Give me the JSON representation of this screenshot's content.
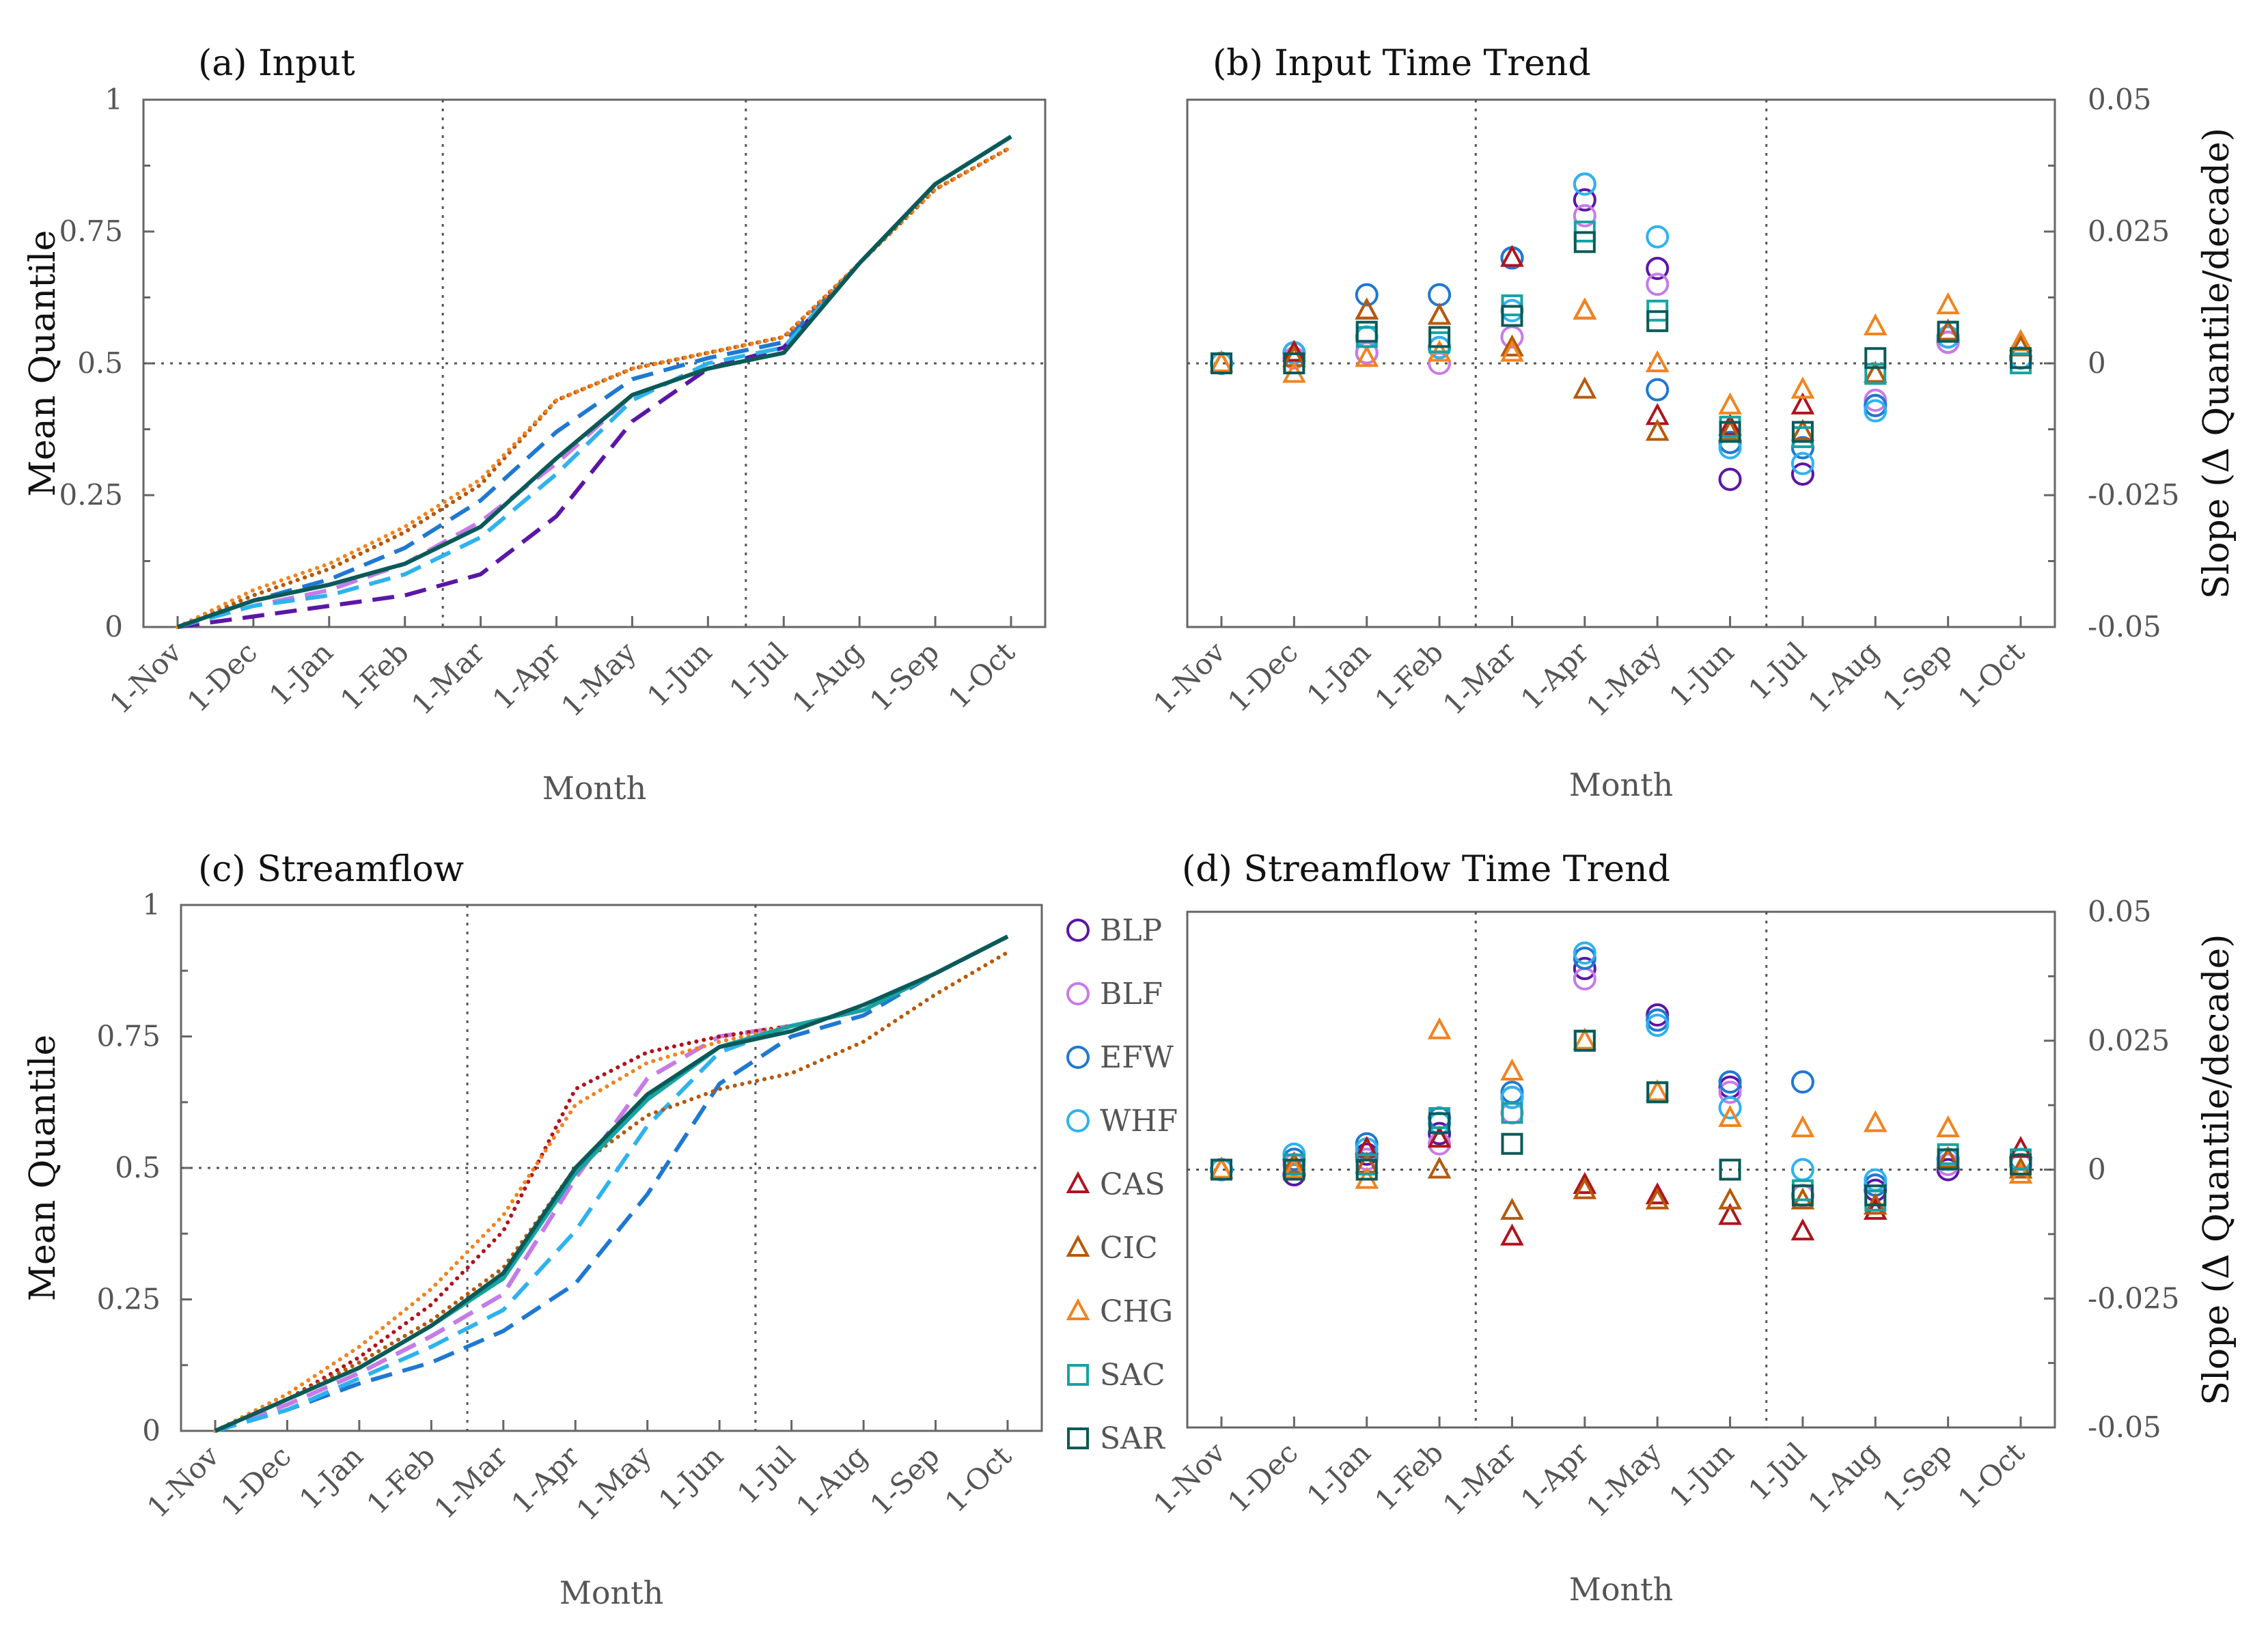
{
  "colors": {
    "BLP": "#5b16a6",
    "BLF": "#c77be8",
    "EFW": "#1f78d1",
    "WHF": "#2fb2ee",
    "CAS": "#b0131d",
    "CIC": "#b6590b",
    "CHG": "#f2831f",
    "SAC": "#17a3a3",
    "SAR": "#0b5a57"
  },
  "legend": {
    "entries": [
      {
        "key": "BLP",
        "label": "BLP",
        "marker": "circle-icon"
      },
      {
        "key": "BLF",
        "label": "BLF",
        "marker": "circle-icon"
      },
      {
        "key": "EFW",
        "label": "EFW",
        "marker": "circle-icon"
      },
      {
        "key": "WHF",
        "label": "WHF",
        "marker": "circle-icon"
      },
      {
        "key": "CAS",
        "label": "CAS",
        "marker": "triangle-icon"
      },
      {
        "key": "CIC",
        "label": "CIC",
        "marker": "triangle-icon"
      },
      {
        "key": "CHG",
        "label": "CHG",
        "marker": "triangle-icon"
      },
      {
        "key": "SAC",
        "label": "SAC",
        "marker": "square-icon"
      },
      {
        "key": "SAR",
        "label": "SAR",
        "marker": "square-icon"
      }
    ]
  },
  "chart_data": [
    {
      "id": "a",
      "type": "line",
      "title": "(a) Input",
      "xlabel": "Month",
      "ylabel": "Mean Quantile",
      "categories": [
        "1-Nov",
        "1-Dec",
        "1-Jan",
        "1-Feb",
        "1-Mar",
        "1-Apr",
        "1-May",
        "1-Jun",
        "1-Jul",
        "1-Aug",
        "1-Sep",
        "1-Oct"
      ],
      "yticks": [
        "0",
        "0.25",
        "0.5",
        "0.75",
        "1"
      ],
      "ylim": [
        0,
        1
      ],
      "reference_lines": {
        "x_after_index": [
          3.5,
          7.5
        ],
        "y": 0.5
      },
      "series": [
        {
          "name": "BLP",
          "style": "dash",
          "values": [
            0.0,
            0.02,
            0.04,
            0.06,
            0.1,
            0.21,
            0.39,
            0.49,
            0.53,
            0.69,
            0.84,
            0.93
          ]
        },
        {
          "name": "BLF",
          "style": "dash",
          "values": [
            0.0,
            0.04,
            0.07,
            0.12,
            0.2,
            0.31,
            0.44,
            0.49,
            0.52,
            0.69,
            0.84,
            0.93
          ]
        },
        {
          "name": "EFW",
          "style": "dash",
          "values": [
            0.0,
            0.05,
            0.09,
            0.15,
            0.24,
            0.37,
            0.47,
            0.51,
            0.54,
            0.69,
            0.84,
            0.93
          ]
        },
        {
          "name": "WHF",
          "style": "dash",
          "values": [
            0.0,
            0.04,
            0.06,
            0.1,
            0.17,
            0.29,
            0.43,
            0.5,
            0.53,
            0.69,
            0.84,
            0.93
          ]
        },
        {
          "name": "CAS",
          "style": "dot",
          "values": [
            0.0,
            0.06,
            0.11,
            0.18,
            0.27,
            0.43,
            0.49,
            0.52,
            0.55,
            0.69,
            0.83,
            0.91
          ]
        },
        {
          "name": "CIC",
          "style": "dot",
          "values": [
            0.0,
            0.06,
            0.11,
            0.18,
            0.27,
            0.43,
            0.49,
            0.52,
            0.55,
            0.69,
            0.83,
            0.91
          ]
        },
        {
          "name": "CHG",
          "style": "dot",
          "values": [
            0.0,
            0.07,
            0.12,
            0.19,
            0.28,
            0.43,
            0.49,
            0.52,
            0.55,
            0.69,
            0.83,
            0.91
          ]
        },
        {
          "name": "SAC",
          "style": "solid",
          "values": [
            0.0,
            0.05,
            0.08,
            0.12,
            0.19,
            0.32,
            0.44,
            0.49,
            0.52,
            0.69,
            0.84,
            0.93
          ]
        },
        {
          "name": "SAR",
          "style": "solid",
          "values": [
            0.0,
            0.05,
            0.08,
            0.12,
            0.19,
            0.32,
            0.44,
            0.49,
            0.52,
            0.69,
            0.84,
            0.93
          ]
        }
      ]
    },
    {
      "id": "b",
      "type": "scatter",
      "title": "(b) Input Time Trend",
      "xlabel": "Month",
      "ylabel": "Slope (Δ Quantile/decade)",
      "y_axis_side": "right",
      "categories": [
        "1-Nov",
        "1-Dec",
        "1-Jan",
        "1-Feb",
        "1-Mar",
        "1-Apr",
        "1-May",
        "1-Jun",
        "1-Jul",
        "1-Aug",
        "1-Sep",
        "1-Oct"
      ],
      "yticks": [
        "-0.05",
        "-0.025",
        "0",
        "0.025",
        "0.05"
      ],
      "ylim": [
        -0.05,
        0.05
      ],
      "reference_lines": {
        "x_after_index": [
          3.5,
          7.5
        ],
        "y": 0
      },
      "series": [
        {
          "name": "BLP",
          "marker": "circle",
          "values": [
            0.0,
            0.002,
            0.002,
            0.003,
            0.02,
            0.031,
            0.018,
            -0.022,
            -0.021,
            -0.008,
            0.004,
            0.001
          ]
        },
        {
          "name": "BLF",
          "marker": "circle",
          "values": [
            0.0,
            0.001,
            0.002,
            0.0,
            0.005,
            0.028,
            0.015,
            -0.015,
            -0.016,
            -0.007,
            0.004,
            0.001
          ]
        },
        {
          "name": "EFW",
          "marker": "circle",
          "values": [
            0.0,
            0.002,
            0.013,
            0.013,
            0.02,
            0.034,
            -0.005,
            -0.015,
            -0.016,
            -0.008,
            0.005,
            0.001
          ]
        },
        {
          "name": "WHF",
          "marker": "circle",
          "values": [
            0.0,
            0.002,
            0.005,
            0.003,
            0.01,
            0.034,
            0.024,
            -0.016,
            -0.019,
            -0.009,
            0.005,
            0.001
          ]
        },
        {
          "name": "CAS",
          "marker": "triangle",
          "values": [
            0.0,
            0.002,
            0.01,
            0.009,
            0.02,
            0.01,
            -0.01,
            -0.012,
            -0.008,
            -0.002,
            0.006,
            0.004
          ]
        },
        {
          "name": "CIC",
          "marker": "triangle",
          "values": [
            0.0,
            0.001,
            0.01,
            0.009,
            0.003,
            -0.005,
            -0.013,
            -0.013,
            -0.013,
            -0.002,
            0.006,
            0.003
          ]
        },
        {
          "name": "CHG",
          "marker": "triangle",
          "values": [
            0.0,
            -0.002,
            0.001,
            0.002,
            0.002,
            0.01,
            0.0,
            -0.008,
            -0.005,
            0.007,
            0.011,
            0.004
          ]
        },
        {
          "name": "SAC",
          "marker": "square",
          "values": [
            0.0,
            0.0,
            0.005,
            0.004,
            0.011,
            0.025,
            0.01,
            -0.012,
            -0.014,
            -0.002,
            0.006,
            0.0
          ]
        },
        {
          "name": "SAR",
          "marker": "square",
          "values": [
            0.0,
            0.0,
            0.006,
            0.005,
            0.009,
            0.023,
            0.008,
            -0.013,
            -0.013,
            0.001,
            0.006,
            0.001
          ]
        }
      ]
    },
    {
      "id": "c",
      "type": "line",
      "title": "(c) Streamflow",
      "xlabel": "Month",
      "ylabel": "Mean Quantile",
      "categories": [
        "1-Nov",
        "1-Dec",
        "1-Jan",
        "1-Feb",
        "1-Mar",
        "1-Apr",
        "1-May",
        "1-Jun",
        "1-Jul",
        "1-Aug",
        "1-Sep",
        "1-Oct"
      ],
      "yticks": [
        "0",
        "0.25",
        "0.5",
        "0.75",
        "1"
      ],
      "ylim": [
        0,
        1
      ],
      "reference_lines": {
        "x_after_index": [
          3.5,
          7.5
        ],
        "y": 0.5
      },
      "series": [
        {
          "name": "BLP",
          "style": "dash",
          "values": [
            0.0,
            0.05,
            0.11,
            0.18,
            0.26,
            0.48,
            0.67,
            0.75,
            0.77,
            0.8,
            0.87,
            0.94
          ]
        },
        {
          "name": "BLF",
          "style": "dash",
          "values": [
            0.0,
            0.05,
            0.11,
            0.18,
            0.26,
            0.48,
            0.67,
            0.75,
            0.77,
            0.8,
            0.87,
            0.94
          ]
        },
        {
          "name": "EFW",
          "style": "dash",
          "values": [
            0.0,
            0.04,
            0.09,
            0.13,
            0.19,
            0.28,
            0.45,
            0.66,
            0.75,
            0.79,
            0.87,
            0.94
          ]
        },
        {
          "name": "WHF",
          "style": "dash",
          "values": [
            0.0,
            0.04,
            0.1,
            0.16,
            0.23,
            0.38,
            0.58,
            0.72,
            0.77,
            0.8,
            0.87,
            0.94
          ]
        },
        {
          "name": "CAS",
          "style": "dot",
          "values": [
            0.0,
            0.06,
            0.14,
            0.24,
            0.38,
            0.65,
            0.72,
            0.75,
            0.77,
            0.8,
            0.87,
            0.94
          ]
        },
        {
          "name": "CIC",
          "style": "dot",
          "values": [
            0.0,
            0.06,
            0.13,
            0.21,
            0.31,
            0.5,
            0.6,
            0.65,
            0.68,
            0.74,
            0.83,
            0.91
          ]
        },
        {
          "name": "CHG",
          "style": "dot",
          "values": [
            0.0,
            0.07,
            0.16,
            0.27,
            0.41,
            0.62,
            0.7,
            0.74,
            0.77,
            0.8,
            0.87,
            0.94
          ]
        },
        {
          "name": "SAC",
          "style": "solid",
          "values": [
            0.0,
            0.06,
            0.12,
            0.2,
            0.29,
            0.49,
            0.63,
            0.73,
            0.77,
            0.8,
            0.87,
            0.94
          ]
        },
        {
          "name": "SAR",
          "style": "solid",
          "values": [
            0.0,
            0.06,
            0.12,
            0.2,
            0.3,
            0.5,
            0.64,
            0.73,
            0.76,
            0.81,
            0.87,
            0.94
          ]
        }
      ]
    },
    {
      "id": "d",
      "type": "scatter",
      "title": "(d) Streamflow Time Trend",
      "xlabel": "Month",
      "ylabel": "Slope (Δ Quantile/decade)",
      "y_axis_side": "right",
      "categories": [
        "1-Nov",
        "1-Dec",
        "1-Jan",
        "1-Feb",
        "1-Mar",
        "1-Apr",
        "1-May",
        "1-Jun",
        "1-Jul",
        "1-Aug",
        "1-Sep",
        "1-Oct"
      ],
      "yticks": [
        "-0.05",
        "-0.025",
        "0",
        "0.025",
        "0.05"
      ],
      "ylim": [
        -0.05,
        0.05
      ],
      "reference_lines": {
        "x_after_index": [
          3.5,
          7.5
        ],
        "y": 0
      },
      "series": [
        {
          "name": "BLP",
          "marker": "circle",
          "values": [
            0.0,
            -0.001,
            0.003,
            0.007,
            0.014,
            0.039,
            0.03,
            0.016,
            -0.005,
            -0.004,
            0.0,
            0.001
          ]
        },
        {
          "name": "BLF",
          "marker": "circle",
          "values": [
            0.0,
            0.001,
            0.002,
            0.005,
            0.011,
            0.037,
            0.029,
            0.015,
            -0.005,
            -0.003,
            0.001,
            0.001
          ]
        },
        {
          "name": "EFW",
          "marker": "circle",
          "values": [
            0.0,
            0.002,
            0.005,
            0.01,
            0.015,
            0.041,
            0.029,
            0.017,
            0.017,
            -0.003,
            0.002,
            0.002
          ]
        },
        {
          "name": "WHF",
          "marker": "circle",
          "values": [
            0.0,
            0.003,
            0.004,
            0.009,
            0.014,
            0.042,
            0.028,
            0.012,
            0.0,
            -0.002,
            0.002,
            0.002
          ]
        },
        {
          "name": "CAS",
          "marker": "triangle",
          "values": [
            0.0,
            0.001,
            0.004,
            0.006,
            -0.013,
            -0.003,
            -0.005,
            -0.009,
            -0.012,
            -0.008,
            0.002,
            0.004
          ]
        },
        {
          "name": "CIC",
          "marker": "triangle",
          "values": [
            0.0,
            0.001,
            0.001,
            0.0,
            -0.008,
            -0.004,
            -0.006,
            -0.006,
            -0.006,
            -0.007,
            0.002,
            0.0
          ]
        },
        {
          "name": "CHG",
          "marker": "triangle",
          "values": [
            0.0,
            0.0,
            -0.002,
            0.027,
            0.019,
            0.025,
            0.015,
            0.01,
            0.008,
            0.009,
            0.008,
            -0.001
          ]
        },
        {
          "name": "SAC",
          "marker": "square",
          "values": [
            0.0,
            0.001,
            0.001,
            0.01,
            0.011,
            0.025,
            0.015,
            0.0,
            -0.004,
            -0.006,
            0.003,
            0.002
          ]
        },
        {
          "name": "SAR",
          "marker": "square",
          "values": [
            0.0,
            0.0,
            0.0,
            0.009,
            0.005,
            0.025,
            0.015,
            0.0,
            -0.005,
            -0.005,
            0.002,
            0.001
          ]
        }
      ]
    }
  ]
}
